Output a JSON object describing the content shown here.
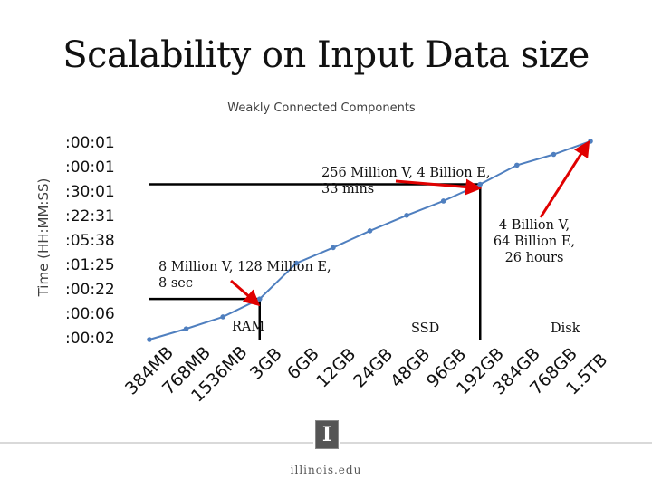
{
  "slide": {
    "title": "Scalability on Input Data size",
    "footer_brand": "illinois.edu",
    "logo_letter": "I"
  },
  "annotations": {
    "a256_line1": "256 Million V, 4 Billion E,",
    "a256_line2": "33 mins",
    "a4b_line1": "4 Billion V,",
    "a4b_line2": "64 Billion E,",
    "a4b_line3": "26 hours",
    "a8m_line1": "8 Million V, 128 Million E,",
    "a8m_line2": "8 sec",
    "region_ram": "RAM",
    "region_ssd": "SSD",
    "region_disk": "Disk"
  },
  "colors": {
    "series": "#4f7fbf",
    "arrow": "#e00000",
    "box": "#000000"
  },
  "chart_data": {
    "type": "line",
    "title": "Weakly Connected Components",
    "xlabel": "",
    "ylabel": "Time (HH:MM:SS)",
    "y_tick_labels": [
      ":00:02",
      ":00:06",
      ":00:22",
      ":01:25",
      ":05:38",
      ":22:31",
      ":30:01",
      ":00:01",
      ":00:01"
    ],
    "ylim": [
      0,
      8.3
    ],
    "categories": [
      "384MB",
      "768MB",
      "1536MB",
      "3GB",
      "6GB",
      "12GB",
      "24GB",
      "48GB",
      "96GB",
      "192GB",
      "384GB",
      "768GB",
      "1.5TB"
    ],
    "series": [
      {
        "name": "Weakly Connected Components",
        "values": [
          0.0,
          0.45,
          0.95,
          1.7,
          3.2,
          3.85,
          4.55,
          5.2,
          5.8,
          6.5,
          7.3,
          7.75,
          8.3
        ]
      }
    ],
    "regions": [
      {
        "label": "RAM",
        "from_index": 0,
        "to_index": 3,
        "to_y": 1.7
      },
      {
        "label": "SSD",
        "from_index": 0,
        "to_index": 9,
        "to_y": 6.5
      },
      {
        "label": "Disk",
        "from_index": 9,
        "to_index": 12
      }
    ],
    "callouts": [
      {
        "text": "8 Million V, 128 Million E, 8 sec",
        "point_index": 3
      },
      {
        "text": "256 Million V, 4 Billion E, 33 mins",
        "point_index": 9
      },
      {
        "text": "4 Billion V, 64 Billion E, 26 hours",
        "point_index": 12
      }
    ]
  }
}
